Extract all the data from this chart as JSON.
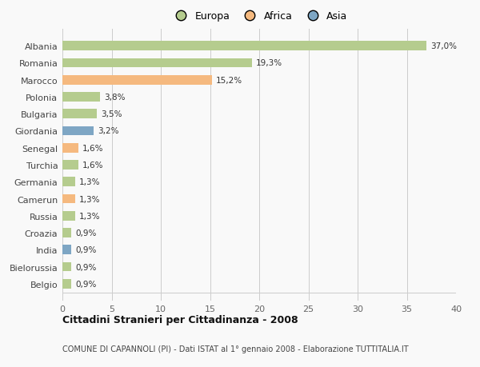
{
  "categories": [
    "Albania",
    "Romania",
    "Marocco",
    "Polonia",
    "Bulgaria",
    "Giordania",
    "Senegal",
    "Turchia",
    "Germania",
    "Camerun",
    "Russia",
    "Croazia",
    "India",
    "Bielorussia",
    "Belgio"
  ],
  "values": [
    37.0,
    19.3,
    15.2,
    3.8,
    3.5,
    3.2,
    1.6,
    1.6,
    1.3,
    1.3,
    1.3,
    0.9,
    0.9,
    0.9,
    0.9
  ],
  "labels": [
    "37,0%",
    "19,3%",
    "15,2%",
    "3,8%",
    "3,5%",
    "3,2%",
    "1,6%",
    "1,6%",
    "1,3%",
    "1,3%",
    "1,3%",
    "0,9%",
    "0,9%",
    "0,9%",
    "0,9%"
  ],
  "continent": [
    "Europa",
    "Europa",
    "Africa",
    "Europa",
    "Europa",
    "Asia",
    "Africa",
    "Europa",
    "Europa",
    "Africa",
    "Europa",
    "Europa",
    "Asia",
    "Europa",
    "Europa"
  ],
  "colors": {
    "Europa": "#b5cc8e",
    "Africa": "#f5b97f",
    "Asia": "#7ea6c4"
  },
  "xlim": [
    0,
    40
  ],
  "xticks": [
    0,
    5,
    10,
    15,
    20,
    25,
    30,
    35,
    40
  ],
  "title": "Cittadini Stranieri per Cittadinanza - 2008",
  "subtitle": "COMUNE DI CAPANNOLI (PI) - Dati ISTAT al 1° gennaio 2008 - Elaborazione TUTTITALIA.IT",
  "background_color": "#f9f9f9",
  "grid_color": "#cccccc",
  "bar_height": 0.55,
  "figsize": [
    6.0,
    4.6
  ],
  "dpi": 100
}
